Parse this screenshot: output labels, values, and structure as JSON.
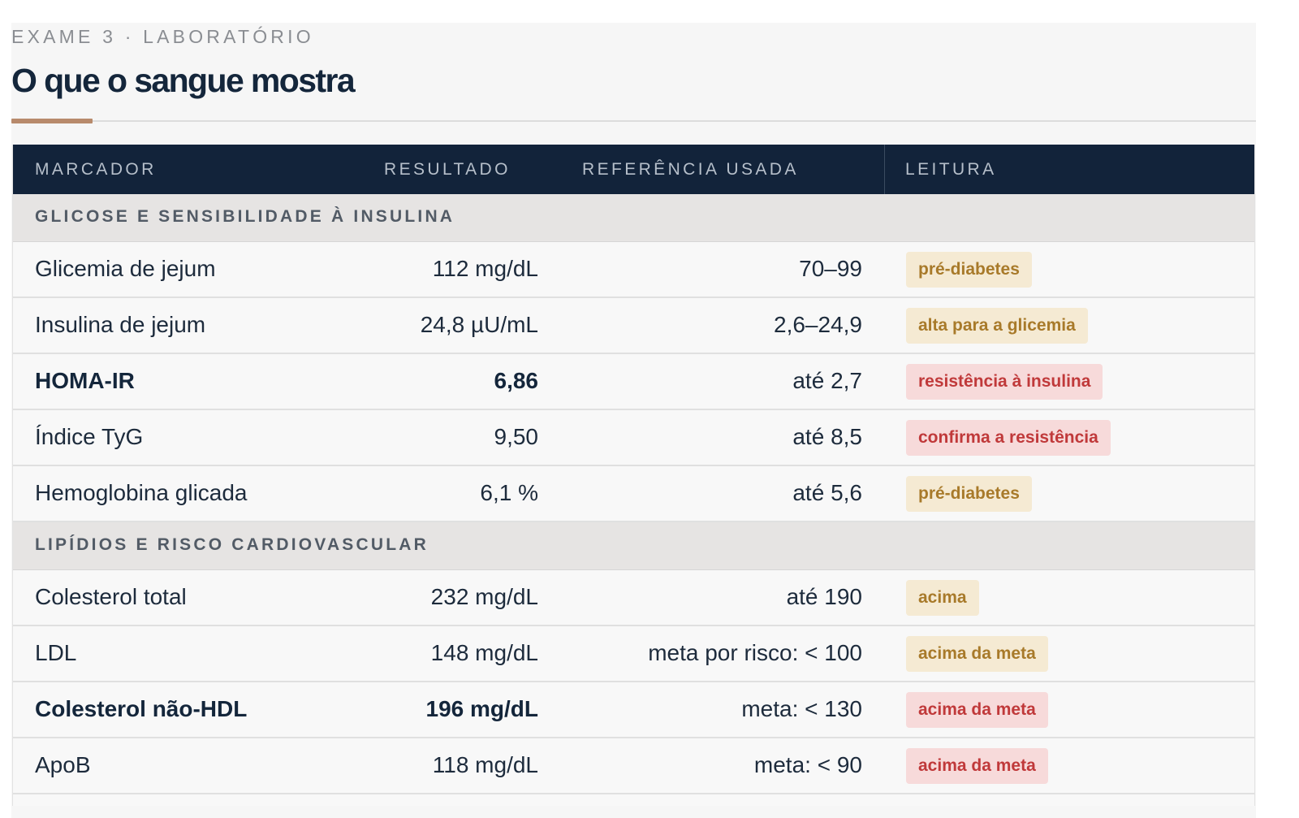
{
  "header": {
    "eyebrow": "EXAME 3 · LABORATÓRIO",
    "title": "O que o sangue mostra"
  },
  "colors": {
    "accent": "#b88a6c",
    "header_bg": "#12233a",
    "warn_bg": "#f5ead3",
    "warn_text": "#a87a2a",
    "danger_bg": "#f7dada",
    "danger_text": "#c0393a"
  },
  "table": {
    "columns": [
      "MARCADOR",
      "RESULTADO",
      "REFERÊNCIA USADA",
      "LEITURA"
    ],
    "sections": [
      {
        "title": "GLICOSE E SENSIBILIDADE À INSULINA",
        "rows": [
          {
            "marker": "Glicemia de jejum",
            "result": "112 mg/dL",
            "reference": "70–99",
            "reading": "pré-diabetes",
            "level": "warn",
            "bold": false
          },
          {
            "marker": "Insulina de jejum",
            "result": "24,8 µU/mL",
            "reference": "2,6–24,9",
            "reading": "alta para a glicemia",
            "level": "warn",
            "bold": false
          },
          {
            "marker": "HOMA-IR",
            "result": "6,86",
            "reference": "até 2,7",
            "reading": "resistência à insulina",
            "level": "danger",
            "bold": true
          },
          {
            "marker": "Índice TyG",
            "result": "9,50",
            "reference": "até 8,5",
            "reading": "confirma a resistência",
            "level": "danger",
            "bold": false
          },
          {
            "marker": "Hemoglobina glicada",
            "result": "6,1 %",
            "reference": "até 5,6",
            "reading": "pré-diabetes",
            "level": "warn",
            "bold": false
          }
        ]
      },
      {
        "title": "LIPÍDIOS E RISCO CARDIOVASCULAR",
        "rows": [
          {
            "marker": "Colesterol total",
            "result": "232 mg/dL",
            "reference": "até 190",
            "reading": "acima",
            "level": "warn",
            "bold": false
          },
          {
            "marker": "LDL",
            "result": "148 mg/dL",
            "reference": "meta por risco: < 100",
            "reading": "acima da meta",
            "level": "warn",
            "bold": false
          },
          {
            "marker": "Colesterol não-HDL",
            "result": "196 mg/dL",
            "reference": "meta: < 130",
            "reading": "acima da meta",
            "level": "danger",
            "bold": true
          },
          {
            "marker": "ApoB",
            "result": "118 mg/dL",
            "reference": "meta: < 90",
            "reading": "acima da meta",
            "level": "danger",
            "bold": false
          }
        ]
      }
    ]
  }
}
